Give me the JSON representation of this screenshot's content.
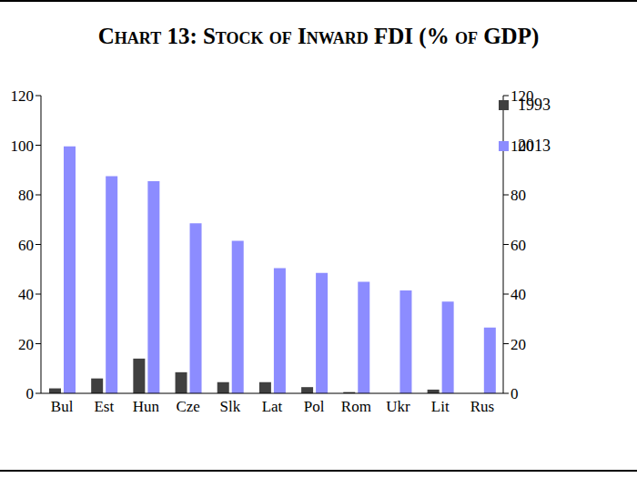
{
  "chart_data": {
    "type": "bar",
    "title": "Chart 13: Stock of Inward FDI (% of GDP)",
    "categories": [
      "Bul",
      "Est",
      "Hun",
      "Cze",
      "Slk",
      "Lat",
      "Pol",
      "Rom",
      "Ukr",
      "Lit",
      "Rus"
    ],
    "series": [
      {
        "name": "1993",
        "color": "#404040",
        "values": [
          2,
          6,
          14,
          8.5,
          4.5,
          4.5,
          2.5,
          0.5,
          0,
          1.5,
          0
        ]
      },
      {
        "name": "2013",
        "color": "#8c8cff",
        "values": [
          99.5,
          87.5,
          85.5,
          68.5,
          61.5,
          50.5,
          48.5,
          45,
          41.5,
          37,
          26.5
        ]
      }
    ],
    "ylim": [
      0,
      120
    ],
    "yticks": [
      0,
      20,
      40,
      60,
      80,
      100,
      120
    ],
    "y2lim": [
      0,
      120
    ],
    "y2ticks": [
      0,
      20,
      40,
      60,
      80,
      100,
      120
    ],
    "grid": false,
    "legend": "upper right"
  }
}
